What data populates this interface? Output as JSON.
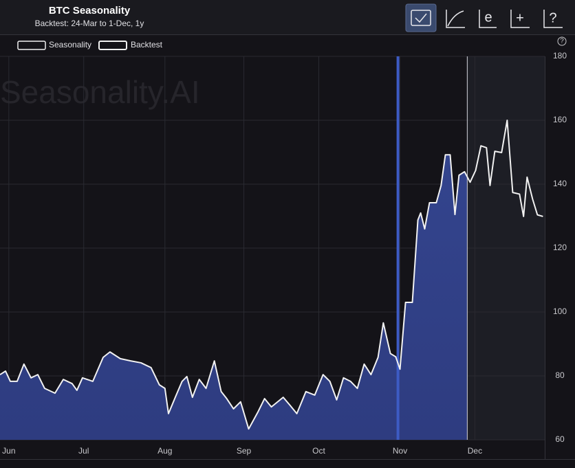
{
  "chart_data": {
    "type": "area",
    "title": "BTC Seasonality",
    "subtitle": "Backtest: 24-Mar to 1-Dec, 1y",
    "watermark": "Seasonality.AI",
    "help": "?",
    "toolbar": [
      "e",
      "+",
      "?"
    ],
    "legend": [
      "Seasonality",
      "Backtest"
    ],
    "series": [
      {
        "name": "Seasonality",
        "color": "#f2f2f2",
        "fill": "#2f3f86",
        "x": [
          0,
          2.2,
          4.1,
          6.8,
          9.5,
          12.3,
          15,
          17.7,
          21.8,
          25.1,
          28.6,
          30.5,
          32.7,
          36.8,
          40.9,
          43.6,
          47.7,
          51.8,
          55.9,
          59.9,
          63.2,
          65.4,
          66.8,
          69.5,
          72.2,
          74.1,
          76.3,
          79,
          81.7,
          85,
          87.7,
          89.9,
          92.6,
          95.4,
          98.6,
          102.2,
          104.9,
          107.6,
          112.3,
          115,
          117.7,
          121.3,
          124.8,
          128.1,
          130.8,
          133.5,
          136.2,
          139,
          141.7,
          144.4,
          147.1,
          149.9,
          152,
          154.8,
          156.9,
          158.6,
          160.8,
          163.5,
          165.7,
          166.8,
          168.4,
          170.3,
          173,
          174.9,
          176.6,
          178.5,
          180.4,
          182,
          184.2,
          186.4,
          188.6,
          190.7,
          192.9,
          194.3,
          196.2,
          198.9,
          201.1,
          203.3,
          206,
          207.6,
          209,
          211.2,
          213.1,
          215.3
        ],
        "values": [
          80.4,
          81.5,
          78.3,
          78.3,
          83.7,
          79.4,
          80.4,
          76.1,
          74.6,
          78.9,
          77.6,
          75.5,
          79.4,
          78.3,
          85.8,
          87.5,
          85.4,
          84.7,
          84.1,
          82.6,
          77.2,
          76.1,
          68.2,
          73.3,
          78.3,
          79.8,
          73.3,
          78.9,
          76.1,
          84.7,
          75.1,
          72.9,
          69.7,
          71.9,
          63.4,
          68.6,
          72.9,
          70.3,
          73.3,
          70.8,
          68.2,
          75.1,
          74.0,
          80.4,
          78.3,
          72.5,
          79.4,
          78.3,
          76.1,
          83.7,
          80.4,
          85.8,
          96.6,
          87.0,
          86.0,
          82.1,
          103.0,
          103.0,
          128.8,
          131.0,
          126.0,
          134.2,
          134.2,
          139.6,
          149.2,
          149.2,
          130.5,
          142.8,
          143.9,
          140.6,
          144.3,
          152.0,
          151.4,
          139.6,
          150.3,
          149.9,
          160.0,
          137.4,
          136.9,
          129.9,
          142.2,
          135.3,
          130.4,
          129.9
        ]
      }
    ],
    "current_marker": 157.8,
    "backtest_end": 185.3,
    "xlim": [
      0,
      216
    ],
    "xticks": [
      {
        "value": 3.5,
        "label": "Jun"
      },
      {
        "value": 33.2,
        "label": "Jul"
      },
      {
        "value": 65.4,
        "label": "Aug"
      },
      {
        "value": 96.7,
        "label": "Sep"
      },
      {
        "value": 126.4,
        "label": "Oct"
      },
      {
        "value": 158.6,
        "label": "Nov"
      },
      {
        "value": 188.3,
        "label": "Dec"
      }
    ],
    "ylim": [
      60,
      180
    ],
    "yticks": [
      60,
      80,
      100,
      120,
      140,
      160,
      180
    ],
    "grid": true
  }
}
